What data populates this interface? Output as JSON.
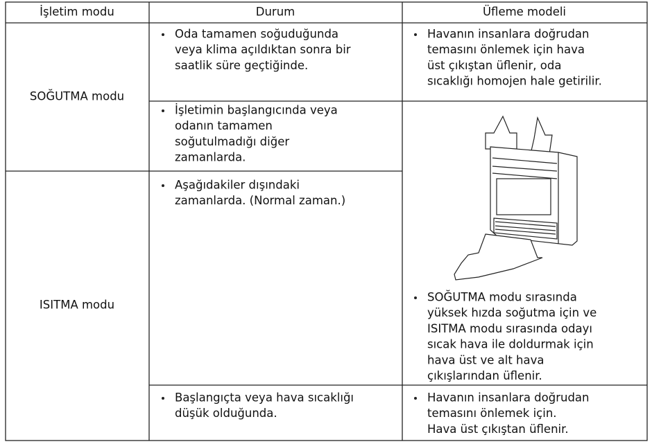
{
  "table": {
    "header": [
      "İşletim modu",
      "Durum",
      "Üfleme modeli"
    ],
    "modes": [
      "SOĞUTMA modu",
      "ISITMA modu"
    ],
    "conditions": [
      [
        "Oda tamamen soğuduğunda",
        "veya klima açıldıktan sonra bir",
        "saatlik süre geçtiğinde."
      ],
      [
        "İşletimin başlangıcında veya",
        "odanın tamamen",
        "soğutulmadığı diğer",
        "zamanlarda."
      ],
      [
        "Aşağıdakiler dışındaki",
        "zamanlarda. (Normal zaman.)"
      ],
      [
        "Başlangıçta veya hava sıcaklığı",
        "düşük olduğunda."
      ]
    ],
    "patterns": [
      [
        "Havanın insanlara doğrudan",
        "temasını önlemek için hava",
        "üst çıkıştan üflenir, oda",
        "sıcaklığı homojen hale getirilir."
      ],
      [
        "SOĞUTMA modu sırasında",
        "yüksek hızda soğutma için ve",
        "ISITMA modu sırasında odayı",
        "sıcak hava ile doldurmak için",
        "hava üst ve alt hava",
        "çıkışlarından üflenir."
      ],
      [
        "Havanın insanlara doğrudan",
        "temasını önlemek için.",
        "Hava üst çıkıştan üflenir."
      ]
    ]
  }
}
